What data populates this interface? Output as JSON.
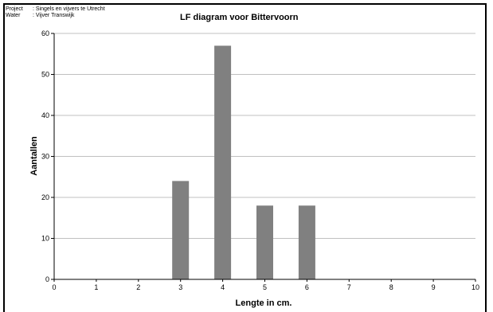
{
  "header": {
    "project_key": "Project",
    "project_value": ": Singels en vijvers te Utrecht",
    "water_key": "Water",
    "water_value": ": Vijver Transwijk"
  },
  "chart_data": {
    "type": "bar",
    "title": "LF diagram voor Bittervoorn",
    "xlabel": "Lengte in cm.",
    "ylabel": "Aantallen",
    "x": [
      3,
      4,
      5,
      6
    ],
    "values": [
      24,
      57,
      18,
      18
    ],
    "xlim": [
      0,
      10
    ],
    "ylim": [
      0,
      60
    ],
    "xticks": [
      0,
      1,
      2,
      3,
      4,
      5,
      6,
      7,
      8,
      9,
      10
    ],
    "yticks": [
      0,
      10,
      20,
      30,
      40,
      50,
      60
    ],
    "grid": true,
    "legend": "none",
    "bar_color": "#808080",
    "grid_color": "#c0c0c0"
  }
}
